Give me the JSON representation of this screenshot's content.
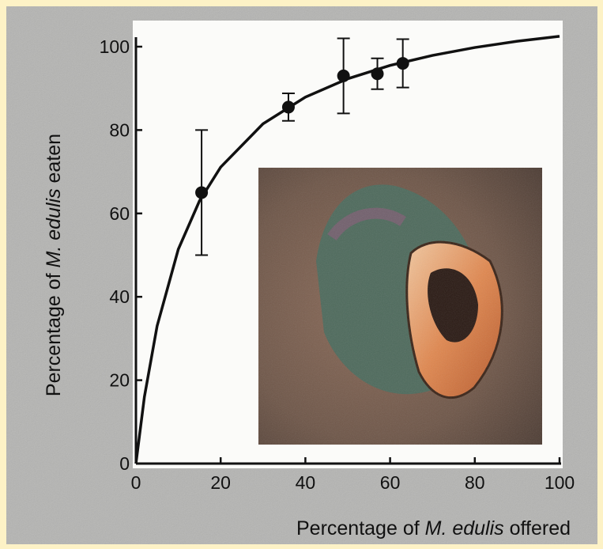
{
  "chart_data": {
    "type": "scatter",
    "xlabel": [
      "Percentage of ",
      "M. edulis",
      " offered"
    ],
    "ylabel": [
      "Percentage of ",
      "M. edulis",
      " eaten"
    ],
    "xlim": [
      0,
      100
    ],
    "ylim": [
      0,
      100
    ],
    "xticks": [
      0,
      20,
      40,
      60,
      80,
      100
    ],
    "yticks": [
      0,
      20,
      40,
      60,
      80,
      100
    ],
    "series": [
      {
        "x": [
          15.5,
          36,
          49,
          57,
          63
        ],
        "values": [
          65,
          85.5,
          93,
          93.5,
          96
        ],
        "errors": [
          15,
          3.3,
          9,
          3.7,
          5.8
        ],
        "color": "#111111"
      }
    ],
    "fit": {
      "x": [
        0,
        2,
        5,
        10,
        15,
        20,
        30,
        40,
        50,
        60,
        70,
        80,
        90,
        100
      ],
      "values": [
        0,
        16,
        33,
        51.4,
        63,
        71.1,
        81.5,
        87.9,
        92.3,
        95.5,
        97.9,
        99.8,
        101.3,
        102.5
      ],
      "color": "#111111"
    }
  }
}
